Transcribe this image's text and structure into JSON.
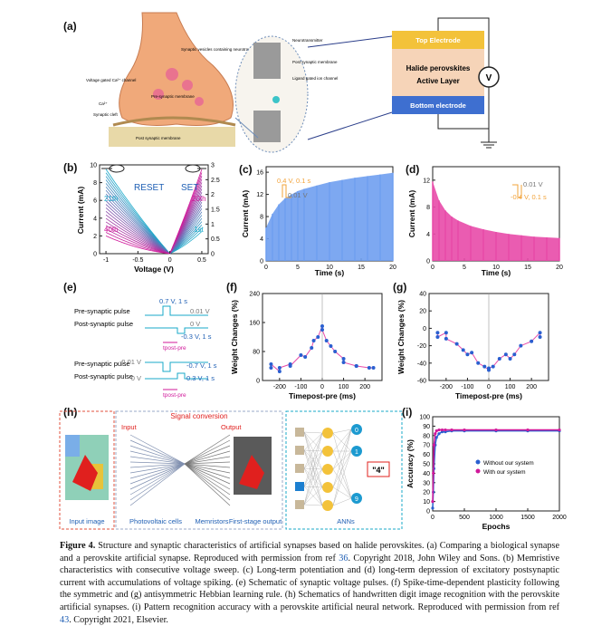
{
  "labels": {
    "a": "(a)",
    "b": "(b)",
    "c": "(c)",
    "d": "(d)",
    "e": "(e)",
    "f": "(f)",
    "g": "(g)",
    "h": "(h)",
    "i": "(i)"
  },
  "panel_a": {
    "synaptic_vesicles": "Synaptic vesicles containing neurotransmitters",
    "voltage_gated": "Voltage gated Ca²⁺ channel",
    "ca": "Ca²⁺",
    "synaptic_cleft": "Synaptic cleft",
    "presynaptic": "Pre-synaptic membrane",
    "postsynaptic": "Post synaptic membrane",
    "neurotransmitter": "Neurotransmitter",
    "post_membrane": "Post synaptic membrane",
    "ligand": "Ligand gated ion channel",
    "top_electrode": "Top Electrode",
    "active1": "Halide perovskites",
    "active2": "Active Layer",
    "bottom_electrode": "Bottom electrode",
    "meter": "V"
  },
  "panel_e": {
    "pre": "Pre-synaptic pulse",
    "post": "Post-synaptic pulse",
    "v07": "0.7 V, 1 s",
    "v001": "0.01 V",
    "v0": "0 V",
    "vm03": "-0.3 V, 1 s",
    "tpp": "tpost-pre",
    "pre2": "Pre-synaptic pulse",
    "post2": "Post-synaptic pulse",
    "vm001": "-0.01 V",
    "vm07": "-0.7 V, 1 s",
    "v0b": "0 V",
    "v03": "0.3 V, 1 s",
    "tpp2": "tpost-pre"
  },
  "panel_h": {
    "signal": "Signal conversion",
    "input": "Input",
    "output": "Output",
    "input_image": "Input image",
    "photovoltaic": "Photovoltaic cells",
    "memristors": "Memristors",
    "first_stage": "First-stage output",
    "anns": "ANNs",
    "out0": "0",
    "out1": "1",
    "out9": "9",
    "result": "\"4\""
  },
  "colors": {
    "cyan": "#19a9c9",
    "magenta": "#d0189a",
    "blue_fill": "#6f9ff0",
    "pink_fill": "#e84aa8",
    "orange": "#f2a33a",
    "accent": "#1f5fb4"
  },
  "chart_data": [
    {
      "id": "b",
      "type": "line",
      "xlabel": "Voltage (V)",
      "ylabel": "Current (mA)",
      "xlim": [
        -1.1,
        0.6
      ],
      "ylim": [
        0,
        10
      ],
      "y2lim": [
        0,
        3
      ],
      "xticks": [
        -1.0,
        -0.5,
        0.0,
        0.5
      ],
      "yticks": [
        0,
        2,
        4,
        6,
        8,
        10
      ],
      "y2ticks": [
        0,
        0.5,
        1.0,
        1.5,
        2.0,
        2.5,
        3.0
      ],
      "annotations": [
        "RESET",
        "SET",
        "21th",
        "40th",
        "20th",
        "1st"
      ]
    },
    {
      "id": "c",
      "type": "bar",
      "xlabel": "Time (s)",
      "ylabel": "Current (mA)",
      "xlim": [
        0,
        20
      ],
      "ylim": [
        0,
        17
      ],
      "xticks": [
        0,
        5,
        10,
        15,
        20
      ],
      "yticks": [
        0,
        4,
        8,
        12,
        16
      ],
      "pulse_labels": [
        "0.4 V, 0.1 s",
        "0.01 V"
      ],
      "x": [
        0,
        1,
        2,
        3,
        4,
        5,
        6,
        8,
        10,
        12,
        14,
        16,
        18,
        20
      ],
      "values": [
        6.0,
        8.5,
        10.2,
        11.3,
        12.0,
        12.6,
        13.0,
        13.6,
        14.2,
        14.6,
        15.0,
        15.3,
        15.6,
        15.9
      ]
    },
    {
      "id": "d",
      "type": "bar",
      "xlabel": "Time (s)",
      "ylabel": "Current (mA)",
      "xlim": [
        0,
        20
      ],
      "ylim": [
        0,
        14
      ],
      "xticks": [
        0,
        5,
        10,
        15,
        20
      ],
      "yticks": [
        0,
        4,
        8,
        12
      ],
      "pulse_labels": [
        "0.01 V",
        "-0.4 V, 0.1 s"
      ],
      "x": [
        0,
        1,
        2,
        3,
        4,
        6,
        8,
        10,
        12,
        14,
        16,
        18,
        20
      ],
      "values": [
        11.8,
        9.0,
        7.5,
        6.6,
        6.0,
        5.2,
        4.7,
        4.3,
        4.0,
        3.8,
        3.6,
        3.5,
        3.4
      ]
    },
    {
      "id": "f",
      "type": "scatter",
      "xlabel": "Timepost-pre (ms)",
      "ylabel": "Weight Changes (%)",
      "xlim": [
        -280,
        280
      ],
      "ylim": [
        0,
        240
      ],
      "xticks": [
        -200,
        -100,
        0,
        100,
        200
      ],
      "yticks": [
        0,
        80,
        160,
        240
      ],
      "x": [
        -240,
        -240,
        -200,
        -200,
        -150,
        -150,
        -100,
        -80,
        -50,
        -40,
        -20,
        0,
        0,
        20,
        40,
        60,
        100,
        100,
        160,
        160,
        220,
        240
      ],
      "y": [
        35,
        45,
        25,
        35,
        45,
        40,
        70,
        65,
        90,
        110,
        120,
        150,
        140,
        110,
        95,
        80,
        60,
        50,
        40,
        40,
        35,
        35
      ]
    },
    {
      "id": "g",
      "type": "scatter",
      "xlabel": "Timepost-pre (ms)",
      "ylabel": "Weight Changes (%)",
      "xlim": [
        -280,
        280
      ],
      "ylim": [
        -60,
        40
      ],
      "xticks": [
        -200,
        -100,
        0,
        100,
        200
      ],
      "yticks": [
        -60,
        -40,
        -20,
        0,
        20,
        40
      ],
      "x": [
        -240,
        -240,
        -200,
        -200,
        -150,
        -120,
        -100,
        -80,
        -50,
        -20,
        0,
        0,
        20,
        50,
        80,
        100,
        120,
        150,
        200,
        240,
        240
      ],
      "y": [
        -5,
        -10,
        -5,
        -12,
        -18,
        -25,
        -30,
        -28,
        -40,
        -44,
        -48,
        -46,
        -44,
        -35,
        -30,
        -35,
        -30,
        -20,
        -15,
        -5,
        -10
      ]
    },
    {
      "id": "i",
      "type": "line",
      "xlabel": "Epochs",
      "ylabel": "Accuracy (%)",
      "xlim": [
        0,
        2000
      ],
      "ylim": [
        0,
        100
      ],
      "xticks": [
        0,
        500,
        1000,
        1500,
        2000
      ],
      "yticks": [
        0,
        10,
        20,
        30,
        40,
        50,
        60,
        70,
        80,
        90,
        100
      ],
      "series": [
        {
          "name": "Without our system",
          "x": [
            0,
            10,
            20,
            40,
            60,
            100,
            150,
            200,
            300,
            500,
            1000,
            1500,
            2000
          ],
          "y": [
            3,
            20,
            45,
            70,
            78,
            82,
            84,
            84,
            85,
            85,
            85,
            85,
            85
          ]
        },
        {
          "name": "With our system",
          "x": [
            0,
            10,
            20,
            40,
            60,
            100,
            150,
            200,
            300,
            500,
            1000,
            1500,
            2000
          ],
          "y": [
            10,
            40,
            70,
            82,
            85,
            86,
            86,
            86,
            86,
            86,
            86,
            86,
            86
          ]
        }
      ]
    }
  ],
  "caption": {
    "fig": "Figure 4.",
    "text": "Structure and synaptic characteristics of artificial synapses based on halide perovskites. (a) Comparing a biological synapse and a perovskite artificial synapse. Reproduced with permission from ref ",
    "ref1": "36",
    "text2": ". Copyright 2018, John Wiley and Sons. (b) Memristive characteristics with consecutive voltage sweep. (c) Long-term potentiation and (d) long-term depression of excitatory postsynaptic current with accumulations of voltage spiking. (e) Schematic of synaptic voltage pulses. (f) Spike-time-dependent plasticity following the symmetric and (g) antisymmetric Hebbian learning rule. (h) Schematics of handwritten digit image recognition with the perovskite artificial synapses. (i) Pattern recognition accuracy with a perovskite artificial neural network. Reproduced with permission from ref ",
    "ref2": "43",
    "text3": ". Copyright 2021, Elsevier."
  }
}
